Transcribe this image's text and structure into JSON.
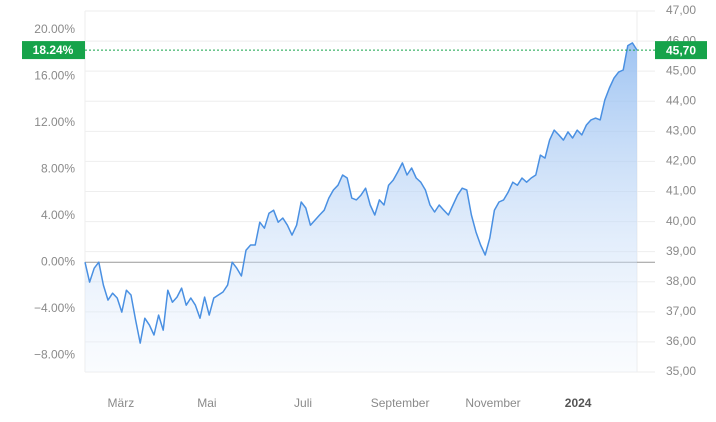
{
  "chart_data": {
    "type": "line",
    "series": [
      {
        "color": "#4a90e2",
        "axis": "y2",
        "values": [
          38.65,
          37.99,
          38.45,
          38.65,
          37.89,
          37.39,
          37.62,
          37.46,
          36.99,
          37.72,
          37.56,
          36.73,
          35.96,
          36.79,
          36.56,
          36.23,
          36.89,
          36.39,
          37.72,
          37.32,
          37.49,
          37.79,
          37.22,
          37.46,
          37.22,
          36.79,
          37.49,
          36.89,
          37.46,
          37.56,
          37.66,
          37.89,
          38.65,
          38.45,
          38.19,
          39.05,
          39.22,
          39.22,
          39.98,
          39.78,
          40.28,
          40.38,
          39.98,
          40.12,
          39.88,
          39.55,
          39.88,
          40.65,
          40.45,
          39.88,
          40.05,
          40.22,
          40.38,
          40.78,
          41.05,
          41.21,
          41.55,
          41.45,
          40.78,
          40.72,
          40.88,
          41.11,
          40.55,
          40.22,
          40.72,
          40.55,
          41.21,
          41.38,
          41.65,
          41.95,
          41.55,
          41.78,
          41.45,
          41.31,
          41.05,
          40.55,
          40.32,
          40.55,
          40.38,
          40.22,
          40.55,
          40.88,
          41.11,
          41.05,
          40.22,
          39.65,
          39.22,
          38.89,
          39.45,
          40.38,
          40.65,
          40.72,
          40.98,
          41.31,
          41.21,
          41.45,
          41.31,
          41.45,
          41.55,
          42.21,
          42.11,
          42.71,
          43.04,
          42.88,
          42.71,
          42.98,
          42.78,
          43.04,
          42.88,
          43.21,
          43.38,
          43.44,
          43.38,
          44.04,
          44.44,
          44.77,
          44.97,
          45.04,
          45.85,
          45.94,
          45.7
        ]
      }
    ],
    "xlim": [
      0,
      120
    ],
    "xticks": [
      {
        "value": 7.8,
        "label": "März"
      },
      {
        "value": 26.5,
        "label": "Mai"
      },
      {
        "value": 47.4,
        "label": "Juli"
      },
      {
        "value": 68.5,
        "label": "September"
      },
      {
        "value": 88.7,
        "label": "November"
      },
      {
        "value": 107.2,
        "label": "2024"
      }
    ],
    "ylim": [
      -9.44,
      21.6
    ],
    "yticks": [
      {
        "value": 20,
        "label": "20.00%"
      },
      {
        "value": 16,
        "label": "16.00%"
      },
      {
        "value": 12,
        "label": "12.00%"
      },
      {
        "value": 8,
        "label": "8.00%"
      },
      {
        "value": 4,
        "label": "4.00%"
      },
      {
        "value": 0,
        "label": "0.00%"
      },
      {
        "value": -4,
        "label": "−4.00%"
      },
      {
        "value": -8,
        "label": "−8.00%"
      }
    ],
    "y2lim": [
      35,
      47
    ],
    "y2ticks": [
      {
        "value": 47,
        "label": "47,00"
      },
      {
        "value": 46,
        "label": "46,00"
      },
      {
        "value": 45,
        "label": "45,00"
      },
      {
        "value": 44,
        "label": "44,00"
      },
      {
        "value": 43,
        "label": "43,00"
      },
      {
        "value": 42,
        "label": "42,00"
      },
      {
        "value": 41,
        "label": "41,00"
      },
      {
        "value": 40,
        "label": "40,00"
      },
      {
        "value": 39,
        "label": "39,00"
      },
      {
        "value": 38,
        "label": "38,00"
      },
      {
        "value": 37,
        "label": "37,00"
      },
      {
        "value": 36,
        "label": "36,00"
      },
      {
        "value": 35,
        "label": "35,00"
      }
    ],
    "current_pct": {
      "value": 18.24,
      "label": "18.24%"
    },
    "current_price": {
      "value": 45.7,
      "label": "45,70"
    },
    "badge_color": "#16a34a",
    "grid": true
  }
}
